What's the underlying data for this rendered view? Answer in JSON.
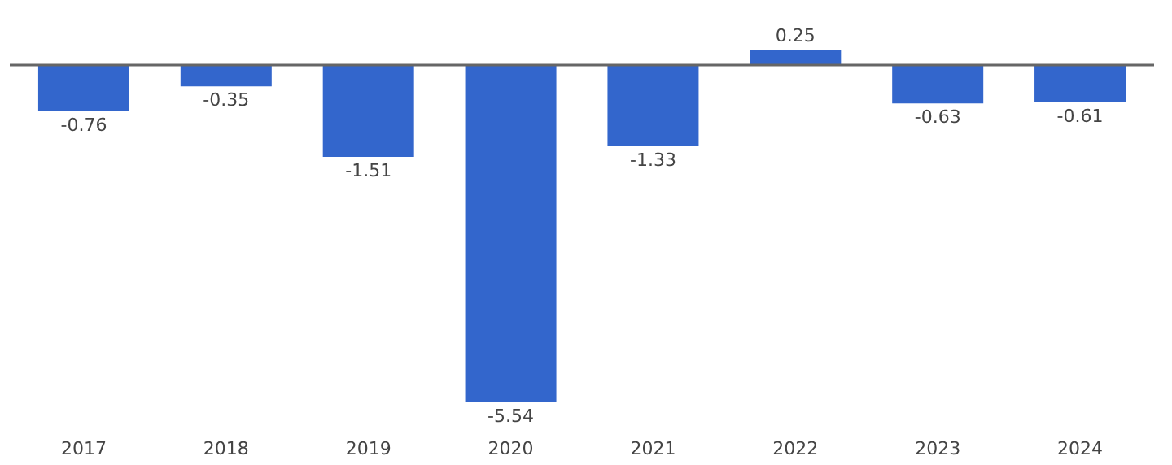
{
  "chart_data": {
    "type": "bar",
    "categories": [
      "2017",
      "2018",
      "2019",
      "2020",
      "2021",
      "2022",
      "2023",
      "2024"
    ],
    "values": [
      -0.76,
      -0.35,
      -1.51,
      -5.54,
      -1.33,
      0.25,
      -0.63,
      -0.61
    ],
    "color": "#3366cc",
    "data_labels": true
  }
}
